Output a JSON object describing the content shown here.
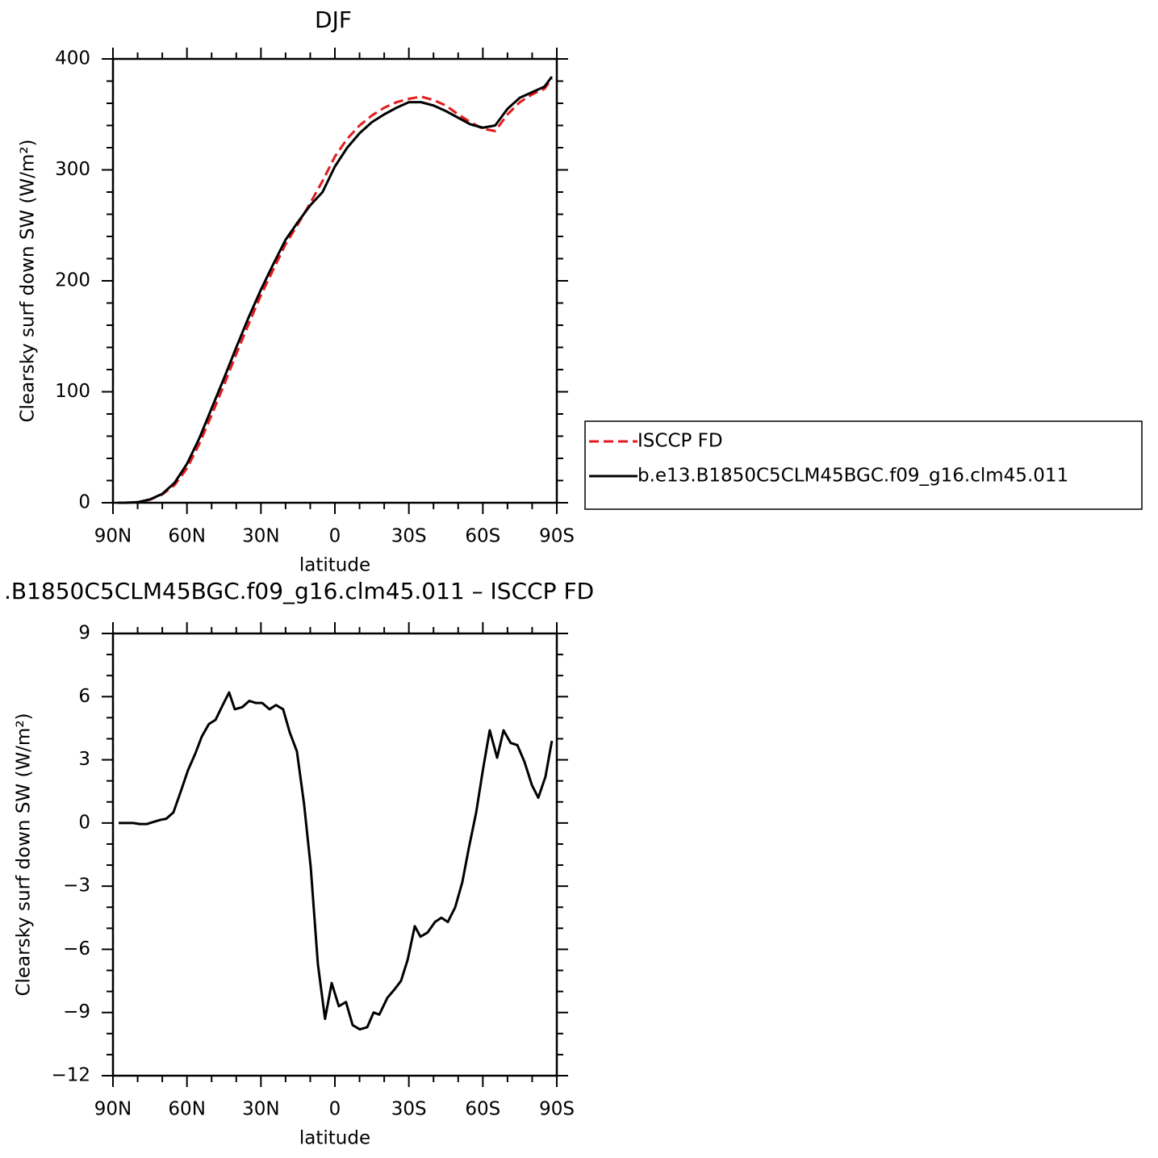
{
  "chart_data": [
    {
      "type": "line",
      "title": "DJF",
      "xlabel": "latitude",
      "ylabel": "Clearsky surf down SW (W/m²)",
      "x": [
        88,
        85,
        80,
        75,
        70,
        65,
        60,
        55,
        50,
        45,
        40,
        35,
        30,
        25,
        20,
        15,
        10,
        5,
        0,
        -5,
        -10,
        -15,
        -20,
        -25,
        -30,
        -35,
        -40,
        -45,
        -50,
        -55,
        -60,
        -65,
        -70,
        -75,
        -80,
        -85,
        -88
      ],
      "series": [
        {
          "name": "ISCCP FD",
          "color": "#e31a1c",
          "dashed": true,
          "values": [
            0,
            0,
            0.4,
            2.8,
            7.5,
            16,
            31,
            53,
            79,
            106,
            134,
            161,
            187,
            210,
            233,
            251,
            270,
            290,
            312,
            328,
            340,
            349,
            356,
            361,
            364,
            366,
            363,
            358,
            350,
            343,
            337,
            335,
            350,
            361,
            368,
            373,
            382
          ]
        },
        {
          "name": "b.e13.B1850C5CLM45BGC.f09_g16.clm45.011",
          "color": "#000000",
          "dashed": false,
          "values": [
            0,
            0,
            0.5,
            3,
            8,
            18,
            35,
            58,
            85,
            112,
            140,
            167,
            192,
            215,
            237,
            253,
            268,
            280,
            303,
            320,
            333,
            343,
            350,
            356,
            361,
            361,
            358,
            353,
            347,
            341,
            338,
            340,
            355,
            365,
            370,
            375,
            384
          ]
        }
      ],
      "xlim": [
        90,
        -90
      ],
      "xticks": [
        {
          "value": 90,
          "label": "90N"
        },
        {
          "value": 60,
          "label": "60N"
        },
        {
          "value": 30,
          "label": "30N"
        },
        0,
        {
          "value": -30,
          "label": "30S"
        },
        {
          "value": -60,
          "label": "60S"
        },
        {
          "value": -90,
          "label": "90S"
        }
      ],
      "ylim": [
        0,
        400
      ],
      "yticks": [
        0,
        100,
        200,
        300,
        400
      ],
      "legend": "right"
    },
    {
      "type": "line",
      "title": ".B1850C5CLM45BGC.f09_g16.clm45.011 – ISCCP FD",
      "xlabel": "latitude",
      "ylabel": "Clearsky surf down SW (W/m²)",
      "x": [
        87.7,
        81.8,
        79.2,
        76.3,
        73.6,
        70.7,
        68.4,
        65.5,
        62.5,
        59.6,
        56.6,
        54.0,
        51.1,
        48.4,
        45.5,
        42.9,
        40.6,
        37.6,
        34.7,
        32.1,
        29.5,
        26.5,
        23.9,
        21.0,
        18.3,
        15.4,
        12.5,
        9.8,
        6.9,
        4.0,
        1.3,
        -1.6,
        -4.5,
        -7.2,
        -10.1,
        -13.1,
        -15.7,
        -18.0,
        -21.3,
        -24.2,
        -26.8,
        -29.5,
        -32.4,
        -34.7,
        -37.6,
        -40.6,
        -43.2,
        -45.8,
        -48.8,
        -51.7,
        -54.3,
        -57.3,
        -60.0,
        -62.8,
        -65.8,
        -68.4,
        -71.3,
        -74.0,
        -76.9,
        -79.9,
        -82.5,
        -85.4,
        -88.0
      ],
      "series": [
        {
          "color": "#000000",
          "dashed": false,
          "values": [
            0,
            0,
            -0.05,
            -0.05,
            0.05,
            0.15,
            0.2,
            0.5,
            1.5,
            2.5,
            3.3,
            4.1,
            4.7,
            4.9,
            5.6,
            6.2,
            5.4,
            5.5,
            5.8,
            5.7,
            5.7,
            5.4,
            5.6,
            5.4,
            4.3,
            3.4,
            0.9,
            -2.1,
            -6.7,
            -9.3,
            -7.6,
            -8.7,
            -8.5,
            -9.6,
            -9.8,
            -9.7,
            -9.0,
            -9.1,
            -8.3,
            -7.9,
            -7.5,
            -6.5,
            -4.9,
            -5.4,
            -5.2,
            -4.7,
            -4.5,
            -4.7,
            -4.0,
            -2.8,
            -1.2,
            0.5,
            2.5,
            4.4,
            3.1,
            4.4,
            3.8,
            3.7,
            2.9,
            1.8,
            1.2,
            2.2,
            3.9
          ]
        }
      ],
      "xlim": [
        90,
        -90
      ],
      "xticks": [
        {
          "value": 90,
          "label": "90N"
        },
        {
          "value": 60,
          "label": "60N"
        },
        {
          "value": 30,
          "label": "30N"
        },
        0,
        {
          "value": -30,
          "label": "30S"
        },
        {
          "value": -60,
          "label": "60S"
        },
        {
          "value": -90,
          "label": "90S"
        }
      ],
      "ylim": [
        -12,
        9
      ],
      "yticks": [
        {
          "value": -12,
          "label": "−12"
        },
        {
          "value": -9,
          "label": "−9"
        },
        {
          "value": -6,
          "label": "−6"
        },
        {
          "value": -3,
          "label": "−3"
        },
        0,
        3,
        6,
        9
      ]
    }
  ]
}
